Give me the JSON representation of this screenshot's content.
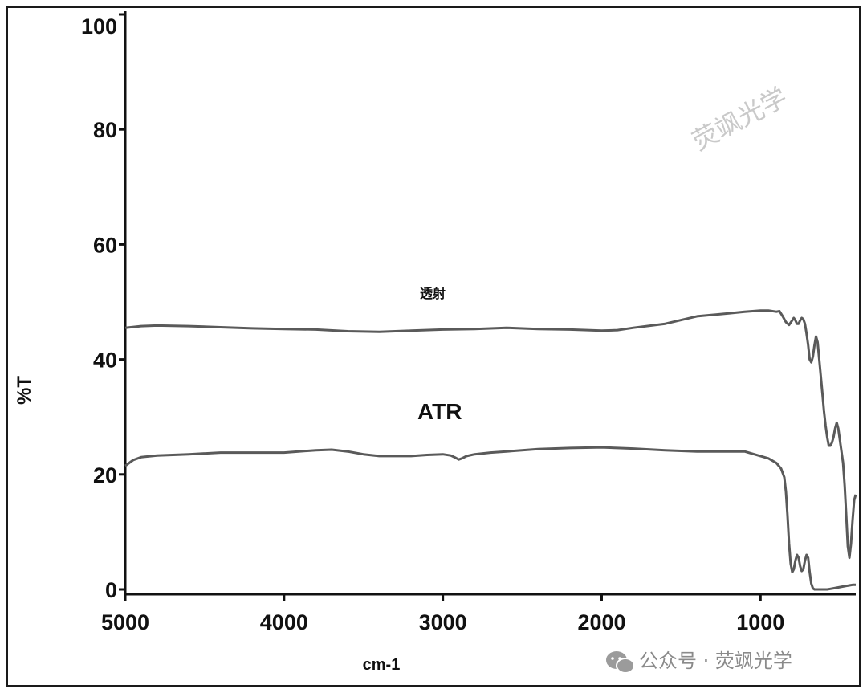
{
  "chart_data": {
    "type": "line",
    "xlabel": "cm-1",
    "ylabel": "%T",
    "xlim": [
      5000,
      400
    ],
    "ylim": [
      0,
      100
    ],
    "x_ticks": [
      "5000",
      "4000",
      "3000",
      "2000",
      "1000"
    ],
    "y_ticks": [
      "0",
      "20",
      "40",
      "60",
      "80",
      "100"
    ],
    "series": [
      {
        "name": "透射",
        "x": [
          5000,
          4900,
          4800,
          4600,
          4400,
          4200,
          4000,
          3800,
          3600,
          3400,
          3200,
          3000,
          2800,
          2600,
          2400,
          2200,
          2000,
          1900,
          1800,
          1600,
          1400,
          1200,
          1100,
          1000,
          950,
          900,
          880,
          860,
          840,
          820,
          800,
          790,
          780,
          770,
          760,
          750,
          740,
          730,
          720,
          710,
          700,
          690,
          680,
          670,
          660,
          650,
          640,
          630,
          620,
          610,
          600,
          590,
          580,
          570,
          560,
          550,
          540,
          530,
          520,
          510,
          500,
          490,
          480,
          470,
          460,
          450,
          440,
          430,
          420,
          410,
          400
        ],
        "y": [
          45.5,
          45.8,
          45.9,
          45.8,
          45.6,
          45.4,
          45.3,
          45.2,
          44.9,
          44.8,
          45.0,
          45.2,
          45.3,
          45.5,
          45.3,
          45.2,
          45.0,
          45.1,
          45.5,
          46.2,
          47.5,
          48.0,
          48.3,
          48.5,
          48.5,
          48.3,
          48.4,
          47.5,
          46.5,
          46.0,
          46.8,
          47.2,
          46.8,
          46.2,
          46.2,
          46.8,
          47.2,
          47.0,
          46.2,
          44.5,
          42.5,
          40.0,
          39.5,
          40.5,
          42.5,
          44.0,
          43.0,
          40.0,
          37.0,
          34.0,
          31.0,
          28.5,
          26.5,
          25.0,
          25.0,
          25.5,
          26.5,
          28.0,
          29.0,
          28.0,
          26.0,
          24.0,
          22.0,
          18.0,
          13.0,
          7.5,
          5.5,
          8.0,
          12.0,
          15.5,
          16.5
        ]
      },
      {
        "name": "ATR",
        "x": [
          5000,
          4950,
          4900,
          4800,
          4600,
          4400,
          4200,
          4000,
          3800,
          3700,
          3600,
          3500,
          3400,
          3300,
          3200,
          3100,
          3000,
          2950,
          2920,
          2900,
          2880,
          2850,
          2800,
          2700,
          2600,
          2400,
          2200,
          2000,
          1900,
          1800,
          1600,
          1400,
          1200,
          1100,
          1000,
          950,
          900,
          870,
          850,
          840,
          830,
          820,
          810,
          800,
          790,
          780,
          770,
          760,
          750,
          740,
          730,
          720,
          710,
          700,
          690,
          680,
          670,
          660,
          640,
          620,
          600,
          580,
          560,
          540,
          520,
          500,
          480,
          460,
          440,
          420,
          400
        ],
        "y": [
          21.5,
          22.5,
          23.0,
          23.3,
          23.5,
          23.8,
          23.8,
          23.8,
          24.2,
          24.3,
          24.0,
          23.5,
          23.2,
          23.2,
          23.2,
          23.4,
          23.5,
          23.3,
          22.9,
          22.6,
          22.8,
          23.2,
          23.5,
          23.8,
          24.0,
          24.4,
          24.6,
          24.7,
          24.6,
          24.5,
          24.2,
          24.0,
          24.0,
          24.0,
          23.2,
          22.8,
          22.0,
          21.0,
          19.5,
          17.0,
          13.0,
          8.0,
          4.5,
          3.0,
          3.5,
          5.0,
          6.0,
          5.5,
          4.0,
          3.2,
          3.5,
          5.0,
          6.0,
          5.5,
          3.0,
          1.0,
          0.2,
          0.0,
          0.0,
          0.0,
          0.0,
          0.0,
          0.1,
          0.2,
          0.3,
          0.4,
          0.5,
          0.6,
          0.7,
          0.8,
          0.8
        ]
      }
    ],
    "annotations": [
      "透射",
      "ATR"
    ],
    "grid": false,
    "legend": "none"
  },
  "watermark": {
    "diagonal_text": "荧飒光学",
    "footer_text": "公众号 · 荧飒光学",
    "icon": "wechat-icon"
  },
  "colors": {
    "line": "#5a5a5a",
    "axis": "#111111",
    "watermark": "#c9c9c9"
  }
}
